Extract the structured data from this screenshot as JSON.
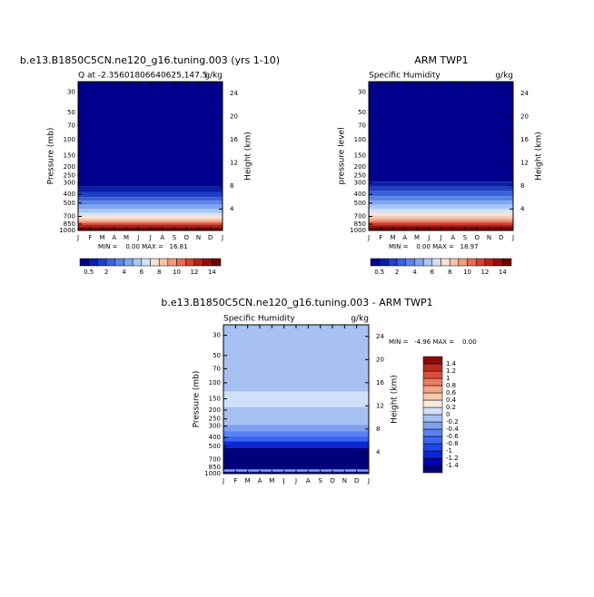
{
  "chart_data": [
    {
      "type": "contour",
      "title": "b.e13.B1850C5CN.ne120_g16.tuning.003 (yrs 1-10)",
      "subtitle_left": "Q at -2.35601806640625,147.5",
      "subtitle_right": "g/kg",
      "ylabel": "Pressure (mb)",
      "y2label": "Height (km)",
      "categories": [
        "J",
        "F",
        "M",
        "A",
        "M",
        "J",
        "J",
        "A",
        "S",
        "O",
        "N",
        "D",
        "J"
      ],
      "ylim": [
        1000,
        23
      ],
      "log_y": true,
      "yticks": [
        30,
        50,
        70,
        100,
        150,
        200,
        250,
        300,
        400,
        500,
        700,
        850,
        1000
      ],
      "y2lim": [
        0.3,
        26
      ],
      "y2ticks": [
        4,
        8,
        12,
        16,
        20,
        24
      ],
      "stats": "MIN =    0.00 MAX =   16.81",
      "levels": [
        0.5,
        1,
        2,
        3,
        4,
        5,
        6,
        7,
        8,
        9,
        10,
        11,
        12,
        13,
        14
      ],
      "colors": [
        "#00008c",
        "#0a1ea8",
        "#1f3fc4",
        "#3a62d8",
        "#5a84e6",
        "#7fa6f0",
        "#a8c6f5",
        "#d2e3f7",
        "#f7e3d5",
        "#f7c2a8",
        "#f29a7c",
        "#e66e52",
        "#d4432f",
        "#b82218",
        "#960f0f",
        "#6e0000"
      ],
      "colorbar_ticks": [
        0.5,
        2,
        4,
        6,
        8,
        10,
        12,
        14
      ],
      "colorbar": "horizontal",
      "layers": [
        {
          "value": 0.3,
          "top": 23,
          "bottom": 330
        },
        {
          "value": 0.7,
          "top": 330,
          "bottom": 380
        },
        {
          "value": 1.5,
          "top": 380,
          "bottom": 430
        },
        {
          "value": 2.5,
          "top": 430,
          "bottom": 470
        },
        {
          "value": 3.5,
          "top": 470,
          "bottom": 520
        },
        {
          "value": 4.5,
          "top": 520,
          "bottom": 580
        },
        {
          "value": 5.5,
          "top": 580,
          "bottom": 640
        },
        {
          "value": 6.5,
          "top": 640,
          "bottom": 690
        },
        {
          "value": 7.5,
          "top": 690,
          "bottom": 740
        },
        {
          "value": 8.5,
          "top": 740,
          "bottom": 780
        },
        {
          "value": 9.5,
          "top": 780,
          "bottom": 810
        },
        {
          "value": 10.5,
          "top": 810,
          "bottom": 840
        },
        {
          "value": 11.5,
          "top": 840,
          "bottom": 870
        },
        {
          "value": 12.5,
          "top": 870,
          "bottom": 900
        },
        {
          "value": 13.5,
          "top": 900,
          "bottom": 930
        },
        {
          "value": 15,
          "top": 930,
          "bottom": 1000
        }
      ]
    },
    {
      "type": "contour",
      "title": "ARM TWP1",
      "subtitle_left": "Specific Humidity",
      "subtitle_right": "g/kg",
      "ylabel": "pressure level",
      "y2label": "Height (km)",
      "categories": [
        "J",
        "F",
        "M",
        "A",
        "M",
        "J",
        "J",
        "A",
        "S",
        "O",
        "N",
        "D",
        "J"
      ],
      "ylim": [
        1000,
        23
      ],
      "log_y": true,
      "yticks": [
        30,
        50,
        70,
        100,
        150,
        200,
        250,
        300,
        400,
        500,
        700,
        850,
        1000
      ],
      "y2lim": [
        0.3,
        26
      ],
      "y2ticks": [
        4,
        8,
        12,
        16,
        20,
        24
      ],
      "stats": "MIN =    0.00 MAX =   18.97",
      "levels": [
        0.5,
        1,
        2,
        3,
        4,
        5,
        6,
        7,
        8,
        9,
        10,
        11,
        12,
        13,
        14
      ],
      "colors": [
        "#00008c",
        "#0a1ea8",
        "#1f3fc4",
        "#3a62d8",
        "#5a84e6",
        "#7fa6f0",
        "#a8c6f5",
        "#d2e3f7",
        "#f7e3d5",
        "#f7c2a8",
        "#f29a7c",
        "#e66e52",
        "#d4432f",
        "#b82218",
        "#960f0f",
        "#6e0000"
      ],
      "colorbar_ticks": [
        0.5,
        2,
        4,
        6,
        8,
        10,
        12,
        14
      ],
      "colorbar": "horizontal",
      "layers": [
        {
          "value": 0.3,
          "top": 23,
          "bottom": 290
        },
        {
          "value": 0.7,
          "top": 290,
          "bottom": 330
        },
        {
          "value": 1.5,
          "top": 330,
          "bottom": 370
        },
        {
          "value": 2.5,
          "top": 370,
          "bottom": 420
        },
        {
          "value": 3.5,
          "top": 420,
          "bottom": 470
        },
        {
          "value": 4.5,
          "top": 470,
          "bottom": 520
        },
        {
          "value": 5.5,
          "top": 520,
          "bottom": 580
        },
        {
          "value": 6.5,
          "top": 580,
          "bottom": 640
        },
        {
          "value": 7.5,
          "top": 640,
          "bottom": 700
        },
        {
          "value": 8.5,
          "top": 700,
          "bottom": 750
        },
        {
          "value": 9.5,
          "top": 750,
          "bottom": 790
        },
        {
          "value": 10.5,
          "top": 790,
          "bottom": 820
        },
        {
          "value": 11.5,
          "top": 820,
          "bottom": 860
        },
        {
          "value": 12.5,
          "top": 860,
          "bottom": 890
        },
        {
          "value": 13.5,
          "top": 890,
          "bottom": 920
        },
        {
          "value": 15,
          "top": 920,
          "bottom": 1000
        }
      ]
    },
    {
      "type": "contour",
      "title": "b.e13.B1850C5CN.ne120_g16.tuning.003 - ARM TWP1",
      "subtitle_left": "Specific Humidity",
      "subtitle_right": "g/kg",
      "ylabel": "Pressure (mb)",
      "y2label": "Height (km)",
      "categories": [
        "J",
        "F",
        "M",
        "A",
        "M",
        "J",
        "J",
        "A",
        "S",
        "O",
        "N",
        "D",
        "J"
      ],
      "ylim": [
        1000,
        23
      ],
      "log_y": true,
      "yticks": [
        30,
        50,
        70,
        100,
        150,
        200,
        250,
        300,
        400,
        500,
        700,
        850,
        1000
      ],
      "y2lim": [
        0.3,
        26
      ],
      "y2ticks": [
        4,
        8,
        12,
        16,
        20,
        24
      ],
      "stats": "MIN =   -4.96 MAX =    0.00",
      "levels": [
        -1.4,
        -1.2,
        -1,
        -0.8,
        -0.6,
        -0.4,
        -0.2,
        0,
        0.2,
        0.4,
        0.6,
        0.8,
        1,
        1.2,
        1.4
      ],
      "colors": [
        "#00007a",
        "#0000b4",
        "#0a28d2",
        "#1e46e6",
        "#3c64f0",
        "#5a82f0",
        "#7fa0f0",
        "#a6c0f2",
        "#cfe0f8",
        "#fbe8d8",
        "#f8c8aa",
        "#f4a486",
        "#ea7a62",
        "#d8503c",
        "#bc2a1e",
        "#8c0a0a"
      ],
      "colorbar_ticks": [
        -1.4,
        -1.2,
        -1,
        -0.8,
        -0.6,
        -0.4,
        -0.2,
        0,
        0.2,
        0.4,
        0.6,
        0.8,
        1,
        1.2,
        1.4
      ],
      "colorbar": "vertical",
      "layers": [
        {
          "value": -0.1,
          "top": 23,
          "bottom": 125
        },
        {
          "value": 0.1,
          "top": 125,
          "bottom": 185
        },
        {
          "value": -0.1,
          "top": 185,
          "bottom": 290
        },
        {
          "value": -0.3,
          "top": 290,
          "bottom": 340
        },
        {
          "value": -0.5,
          "top": 340,
          "bottom": 390
        },
        {
          "value": -0.7,
          "top": 390,
          "bottom": 440
        },
        {
          "value": -1.1,
          "top": 440,
          "bottom": 520
        },
        {
          "value": -1.6,
          "top": 520,
          "bottom": 900
        },
        {
          "value": -0.3,
          "top": 900,
          "bottom": 950
        },
        {
          "value": -1.6,
          "top": 950,
          "bottom": 1000
        }
      ]
    }
  ]
}
